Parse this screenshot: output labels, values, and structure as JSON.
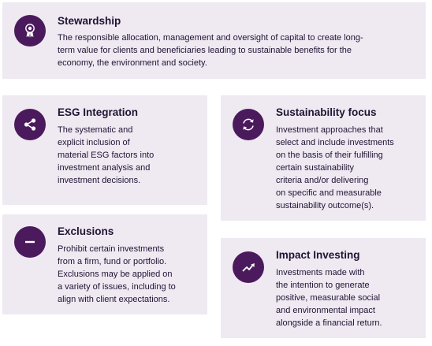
{
  "cards": {
    "stewardship": {
      "title": "Stewardship",
      "lines": [
        "The responsible allocation, management and oversight of capital to create long-",
        "term value for clients and beneficiaries leading to sustainable benefits for the",
        "economy, the environment and society."
      ],
      "icon": "award-ribbon-icon"
    },
    "esg_integration": {
      "title": "ESG Integration",
      "lines": [
        "The systematic and",
        "explicit inclusion of",
        "material ESG factors into",
        "investment analysis and",
        "investment decisions."
      ],
      "icon": "share-icon"
    },
    "sustainability_focus": {
      "title": "Sustainability focus",
      "lines": [
        "Investment approaches that",
        "select and include investments",
        "on the basis of their fulfilling",
        "certain sustainability",
        "criteria and/or delivering",
        "on specific and measurable",
        "sustainability outcome(s)."
      ],
      "icon": "refresh-cycle-icon"
    },
    "exclusions": {
      "title": "Exclusions",
      "lines": [
        "Prohibit certain investments",
        "from a firm, fund or portfolio.",
        "Exclusions may be applied on",
        "a variety of issues, including to",
        "align with client expectations."
      ],
      "icon": "minus-icon"
    },
    "impact_investing": {
      "title": "Impact Investing",
      "lines": [
        "Investments made with",
        "the intention to generate",
        "positive, measurable social",
        "and environmental impact",
        "alongside a financial return."
      ],
      "icon": "trend-up-icon"
    }
  },
  "colors": {
    "card_bg": "#efe9f2",
    "icon_bg": "#4b1a5c",
    "text": "#1f1433"
  }
}
